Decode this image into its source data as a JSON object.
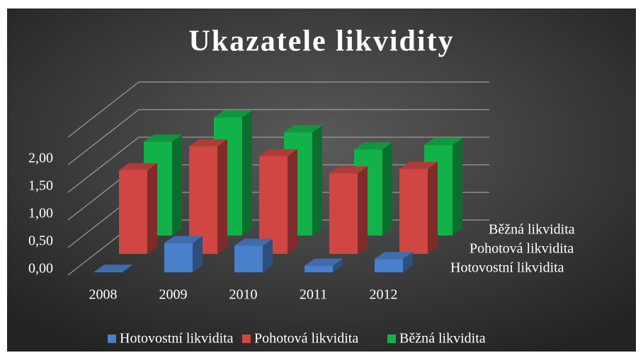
{
  "chart_data": {
    "type": "bar3d",
    "title": "Ukazatele likvidity",
    "categories": [
      "2008",
      "2009",
      "2010",
      "2011",
      "2012"
    ],
    "series": [
      {
        "name": "Hotovostní likvidita",
        "color": "#4a7fcb",
        "values": [
          0.01,
          0.53,
          0.48,
          0.12,
          0.24
        ]
      },
      {
        "name": "Pohotová likvidita",
        "color": "#cf4642",
        "values": [
          1.52,
          1.95,
          1.77,
          1.46,
          1.54
        ]
      },
      {
        "name": "Běžná likvidita",
        "color": "#12b24a",
        "values": [
          1.7,
          2.14,
          1.87,
          1.56,
          1.64
        ]
      }
    ],
    "ylim": [
      0,
      2.5
    ],
    "yticks": [
      {
        "value": 0,
        "label": "0,00"
      },
      {
        "value": 0.5,
        "label": "0,50"
      },
      {
        "value": 1,
        "label": "1,00"
      },
      {
        "value": 1.5,
        "label": "1,50"
      },
      {
        "value": 2,
        "label": "2,00"
      },
      {
        "value": 2.5,
        "label": ""
      }
    ],
    "grid": true,
    "legend": "bottom"
  }
}
